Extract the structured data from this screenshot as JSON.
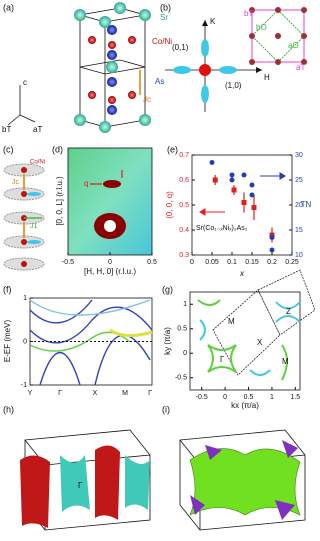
{
  "panels": {
    "a": {
      "label": "(a)",
      "sr": "Sr",
      "coni": "Co/Ni",
      "as": "As",
      "c": "c",
      "bt": "bT",
      "at": "aT",
      "jc": "Jc"
    },
    "b": {
      "label": "(b)",
      "k": "K",
      "h": "H",
      "p01": "(0,1)",
      "p10": "(1,0)",
      "bt": "bT",
      "at": "aT",
      "bo": "bO",
      "ao": "aO"
    },
    "c": {
      "label": "(c)",
      "coni": "Co/Ni",
      "jc": "Jc",
      "j1": "J1"
    },
    "d": {
      "label": "(d)",
      "xlabel": "[H, H, 0] (r.l.u.)",
      "ylabel": "[0, 0, L] (r.l.u.)",
      "q": "q",
      "xlim": [
        -0.5,
        0.5
      ],
      "xticks": [
        -0.5,
        0,
        0.5
      ]
    },
    "e": {
      "label": "(e)",
      "type": "scatter",
      "xlabel": "x",
      "ylabel": "(0, 0, q)",
      "y2label": "TN",
      "annotation": "Sr(Co₁₋ₓNiₓ)₂As₂",
      "xlim": [
        0,
        0.25
      ],
      "xticks": [
        0,
        0.05,
        0.1,
        0.15,
        0.2,
        0.25
      ],
      "ylim": [
        0.3,
        0.7
      ],
      "yticks": [
        0.3,
        0.4,
        0.5,
        0.6,
        0.7
      ],
      "y2lim": [
        10,
        30
      ],
      "y2ticks": [
        10,
        15,
        20,
        25,
        30
      ],
      "series": [
        {
          "color": "#e02020",
          "x": [
            0.058,
            0.105,
            0.13,
            0.155,
            0.2
          ],
          "values": [
            0.6,
            0.56,
            0.51,
            0.49,
            0.38
          ],
          "errors": [
            0.02,
            0.02,
            0.04,
            0.05,
            0.03
          ]
        },
        {
          "color": "#1f3fbf",
          "axis": "y2",
          "x": [
            0.05,
            0.1,
            0.1,
            0.13,
            0.15,
            0.15,
            0.2,
            0.2
          ],
          "values": [
            28.5,
            26,
            25,
            26,
            24,
            22,
            13.5,
            11
          ]
        }
      ]
    },
    "f": {
      "label": "(f)",
      "ylabel": "E-EF (meV)",
      "ylim": [
        -1,
        1
      ],
      "yticks": [
        -1,
        0,
        1
      ],
      "categories": [
        "Y",
        "Γ",
        "X",
        "M",
        "Γ"
      ]
    },
    "g": {
      "label": "(g)",
      "xlabel": "kx (π/a)",
      "ylabel": "ky (π/a)",
      "m1": "M",
      "z": "Z",
      "x": "X",
      "gamma": "Γ",
      "m2": "M",
      "xlim": [
        -0.75,
        1.6
      ],
      "xticks": [
        -0.5,
        0,
        0.5,
        1,
        1.5
      ],
      "ylim": [
        -0.75,
        1.25
      ],
      "yticks": [
        -0.5,
        0,
        0.5,
        1
      ]
    },
    "h": {
      "label": "(h)",
      "gamma": "Γ"
    },
    "i": {
      "label": "(i)"
    }
  }
}
